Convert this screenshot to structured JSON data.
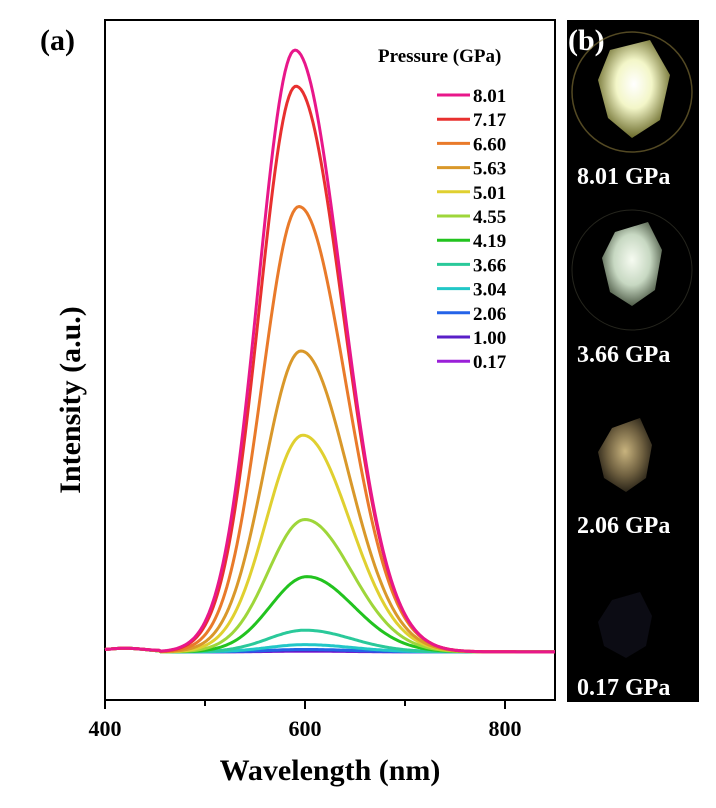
{
  "panel_a_label": "(a)",
  "panel_b_label": "(b)",
  "chart_data": {
    "type": "line",
    "xlabel": "Wavelength (nm)",
    "ylabel": "Intensity (a.u.)",
    "xlim": [
      400,
      850
    ],
    "ylim": [
      -0.08,
      1.05
    ],
    "x_ticks": [
      400,
      600,
      800
    ],
    "legend_title": "Pressure (GPa)",
    "legend_position": "top-right",
    "grid": false,
    "series": [
      {
        "name": "8.01",
        "color": "#e8178a",
        "peak": 590,
        "amplitude": 1.0
      },
      {
        "name": "7.17",
        "color": "#e8302f",
        "peak": 591,
        "amplitude": 0.94
      },
      {
        "name": "6.60",
        "color": "#e97a2a",
        "peak": 594,
        "amplitude": 0.74
      },
      {
        "name": "5.63",
        "color": "#d9982a",
        "peak": 596,
        "amplitude": 0.5
      },
      {
        "name": "5.01",
        "color": "#e0d030",
        "peak": 598,
        "amplitude": 0.36
      },
      {
        "name": "4.55",
        "color": "#9ed63a",
        "peak": 600,
        "amplitude": 0.22
      },
      {
        "name": "4.19",
        "color": "#22c31f",
        "peak": 602,
        "amplitude": 0.125
      },
      {
        "name": "3.66",
        "color": "#2ac99a",
        "peak": 600,
        "amplitude": 0.036
      },
      {
        "name": "3.04",
        "color": "#22c7c7",
        "peak": 600,
        "amplitude": 0.012
      },
      {
        "name": "2.06",
        "color": "#2463e8",
        "peak": 600,
        "amplitude": 0.004
      },
      {
        "name": "1.00",
        "color": "#5a1fc8",
        "peak": 600,
        "amplitude": 0.002
      },
      {
        "name": "0.17",
        "color": "#9a1fd8",
        "peak": 600,
        "amplitude": 0.001
      }
    ]
  },
  "photos": [
    {
      "label": "8.01 GPa",
      "brightness": 1.0,
      "color": "#f4f7d2"
    },
    {
      "label": "3.66 GPa",
      "brightness": 0.8,
      "color": "#dfead8"
    },
    {
      "label": "2.06 GPa",
      "brightness": 0.35,
      "color": "#c9b48a"
    },
    {
      "label": "0.17 GPa",
      "brightness": 0.05,
      "color": "#30304a"
    }
  ]
}
